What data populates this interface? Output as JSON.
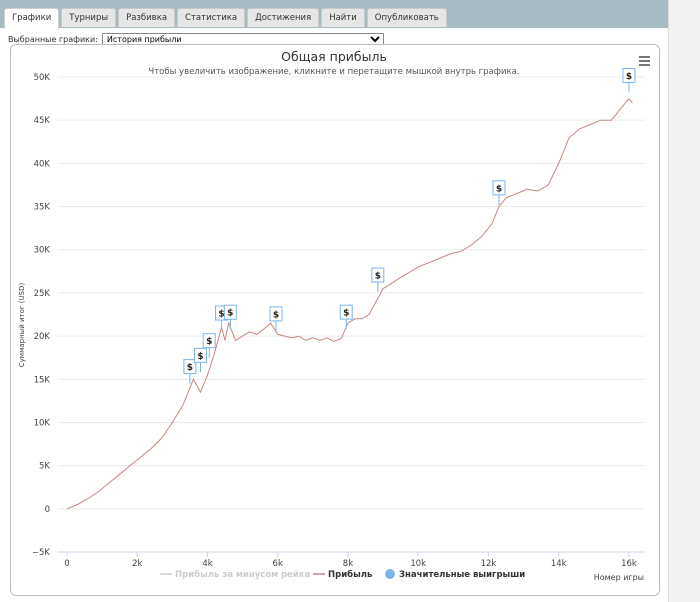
{
  "tabs": [
    {
      "label": "Графики",
      "active": true
    },
    {
      "label": "Турниры"
    },
    {
      "label": "Разбивка"
    },
    {
      "label": "Статистика"
    },
    {
      "label": "Достижения"
    },
    {
      "label": "Найти"
    },
    {
      "label": "Опубликовать"
    }
  ],
  "selector": {
    "label": "Выбранные графики:",
    "value": "История прибыли"
  },
  "chart": {
    "menu_icon": "hamburger-menu-icon",
    "marker_symbol": "$"
  },
  "chart_data": {
    "type": "line",
    "title": "Общая прибыль",
    "subtitle": "Чтобы увеличить изображение, кликните и перетащите мышкой внутрь графика.",
    "xlabel": "Номер игры",
    "ylabel": "Суммарный итог (USD)",
    "xlim": [
      0,
      16400
    ],
    "ylim": [
      -5000,
      50000
    ],
    "x_ticks": [
      0,
      2000,
      4000,
      6000,
      8000,
      10000,
      12000,
      14000,
      16000
    ],
    "x_tick_labels": [
      "0",
      "2k",
      "4k",
      "6k",
      "8k",
      "10k",
      "12k",
      "14k",
      "16k"
    ],
    "y_ticks": [
      -5000,
      0,
      5000,
      10000,
      15000,
      20000,
      25000,
      30000,
      35000,
      40000,
      45000,
      50000
    ],
    "y_tick_labels": [
      "−5K",
      "0",
      "5K",
      "10K",
      "15K",
      "20K",
      "25K",
      "30K",
      "35K",
      "40K",
      "45K",
      "50K"
    ],
    "grid": true,
    "legend_position": "bottom",
    "series": [
      {
        "name": "Прибыль за минусом рейка",
        "hidden": true,
        "color": "#cccccc",
        "points": []
      },
      {
        "name": "Прибыль",
        "color": "#c98580",
        "points": [
          [
            0,
            0
          ],
          [
            300,
            500
          ],
          [
            600,
            1200
          ],
          [
            900,
            2000
          ],
          [
            1200,
            3000
          ],
          [
            1500,
            4000
          ],
          [
            1800,
            5000
          ],
          [
            2100,
            6000
          ],
          [
            2400,
            7000
          ],
          [
            2700,
            8200
          ],
          [
            3000,
            10000
          ],
          [
            3300,
            12000
          ],
          [
            3500,
            14000
          ],
          [
            3600,
            15000
          ],
          [
            3800,
            13500
          ],
          [
            4000,
            15500
          ],
          [
            4200,
            18000
          ],
          [
            4400,
            21000
          ],
          [
            4500,
            19500
          ],
          [
            4600,
            21500
          ],
          [
            4800,
            19500
          ],
          [
            5000,
            20000
          ],
          [
            5200,
            20500
          ],
          [
            5400,
            20200
          ],
          [
            5600,
            20800
          ],
          [
            5800,
            21500
          ],
          [
            6000,
            20200
          ],
          [
            6200,
            20000
          ],
          [
            6400,
            19800
          ],
          [
            6600,
            20000
          ],
          [
            6800,
            19500
          ],
          [
            7000,
            19800
          ],
          [
            7200,
            19500
          ],
          [
            7400,
            19800
          ],
          [
            7600,
            19400
          ],
          [
            7800,
            19700
          ],
          [
            8000,
            21500
          ],
          [
            8200,
            22000
          ],
          [
            8400,
            22000
          ],
          [
            8600,
            22500
          ],
          [
            8800,
            24000
          ],
          [
            9000,
            25500
          ],
          [
            9200,
            26000
          ],
          [
            9500,
            26800
          ],
          [
            9800,
            27500
          ],
          [
            10000,
            28000
          ],
          [
            10300,
            28500
          ],
          [
            10600,
            29000
          ],
          [
            10900,
            29500
          ],
          [
            11200,
            29800
          ],
          [
            11500,
            30500
          ],
          [
            11800,
            31500
          ],
          [
            12100,
            33000
          ],
          [
            12300,
            35000
          ],
          [
            12500,
            36000
          ],
          [
            12800,
            36500
          ],
          [
            13100,
            37000
          ],
          [
            13400,
            36800
          ],
          [
            13700,
            37500
          ],
          [
            14000,
            40000
          ],
          [
            14300,
            43000
          ],
          [
            14600,
            44000
          ],
          [
            14900,
            44500
          ],
          [
            15200,
            45000
          ],
          [
            15500,
            45000
          ],
          [
            15800,
            46500
          ],
          [
            16000,
            47500
          ],
          [
            16100,
            47000
          ]
        ]
      },
      {
        "name": "Значительные выигрыши",
        "color": "#7cb5ec",
        "points": [
          [
            3500,
            14500
          ],
          [
            3800,
            15800
          ],
          [
            4050,
            17500
          ],
          [
            4400,
            20700
          ],
          [
            4650,
            20800
          ],
          [
            5950,
            20600
          ],
          [
            7950,
            20800
          ],
          [
            8850,
            25100
          ],
          [
            12300,
            35200
          ],
          [
            16000,
            48200
          ]
        ]
      }
    ]
  }
}
